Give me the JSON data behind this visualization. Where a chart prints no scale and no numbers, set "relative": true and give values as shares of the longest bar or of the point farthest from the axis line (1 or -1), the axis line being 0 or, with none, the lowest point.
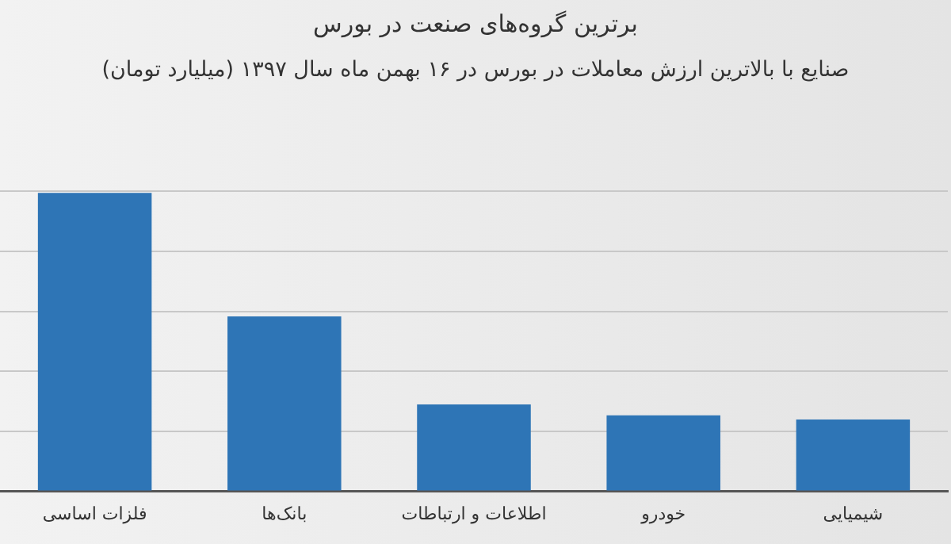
{
  "chart_data": {
    "type": "bar",
    "title": "برترین گروه‌های صنعت در بورس",
    "subtitle": "صنایع با بالاترین ارزش معاملات در بورس در ۱۶ بهمن ماه سال ۱۳۹۷ (میلیارد تومان)",
    "categories": [
      "فلزات اساسی",
      "بانک‌ها",
      "اطلاعات و ارتباطات",
      "خودرو",
      "شیمیایی"
    ],
    "values": [
      1,
      0.586,
      0.291,
      0.255,
      0.241
    ],
    "color": "#2e75b6",
    "relative": true,
    "grid": "y",
    "legend": false
  }
}
